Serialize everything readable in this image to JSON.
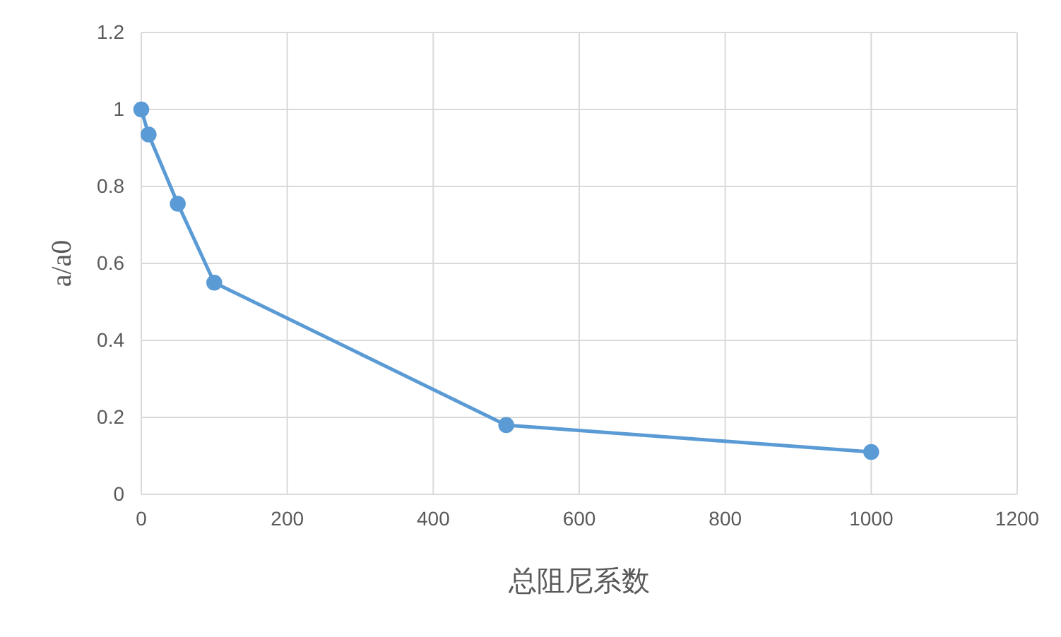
{
  "chart_data": {
    "type": "line",
    "xlabel": "总阻尼系数",
    "ylabel": "a/a0",
    "x": [
      0,
      10,
      50,
      100,
      500,
      1000
    ],
    "series": [
      {
        "color": "#5b9bd5",
        "values": [
          1.0,
          0.935,
          0.755,
          0.55,
          0.18,
          0.11
        ]
      }
    ],
    "xlim": [
      0,
      1200
    ],
    "xticks": [
      0,
      200,
      400,
      600,
      800,
      1000,
      1200
    ],
    "ylim": [
      0,
      1.2
    ],
    "yticks": [
      0,
      0.2,
      0.4,
      0.6,
      0.8,
      1,
      1.2
    ],
    "grid": true,
    "marker": "circle",
    "line_style": "solid"
  }
}
